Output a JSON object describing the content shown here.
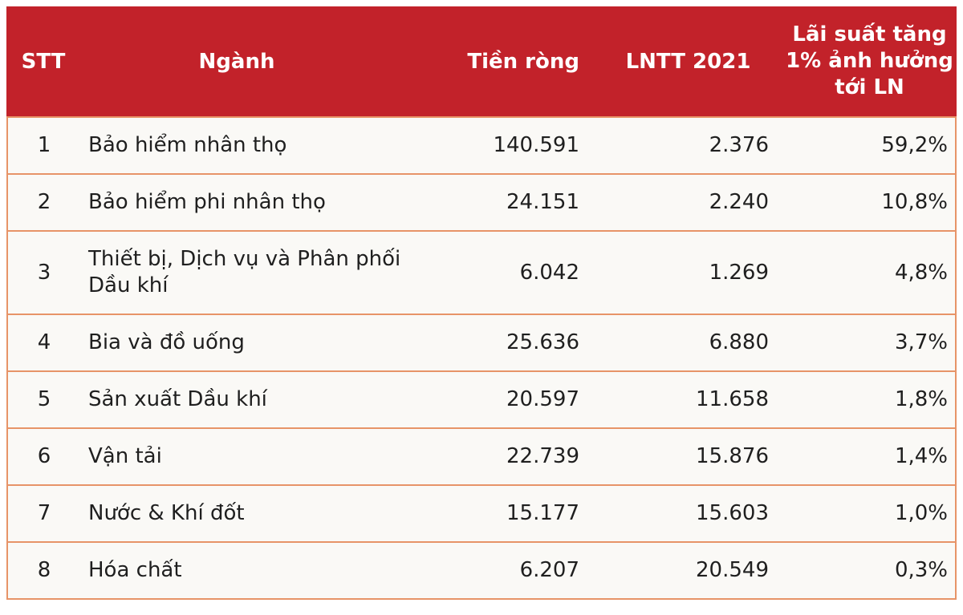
{
  "colors": {
    "header_bg": "#c2222a",
    "header_text": "#ffffff",
    "border": "#e79468",
    "row_bg": "#faf9f6",
    "body_text": "#1f1f1f",
    "page_bg": "#ffffff"
  },
  "chart_data": {
    "type": "table",
    "columns": [
      {
        "key": "stt",
        "label": "STT"
      },
      {
        "key": "nganh",
        "label": "Ngành"
      },
      {
        "key": "tien-rong",
        "label": "Tiền ròng"
      },
      {
        "key": "lntt-2021",
        "label": "LNTT 2021"
      },
      {
        "key": "lai-suat-impact",
        "label": "Lãi suất tăng\n1% ảnh hưởng\ntới LN"
      }
    ],
    "rows": [
      [
        "1",
        "Bảo hiểm nhân thọ",
        "140.591",
        "2.376",
        "59,2%"
      ],
      [
        "2",
        "Bảo hiểm phi nhân thọ",
        "24.151",
        "2.240",
        "10,8%"
      ],
      [
        "3",
        "Thiết bị, Dịch vụ và Phân phối\nDầu khí",
        "6.042",
        "1.269",
        "4,8%"
      ],
      [
        "4",
        "Bia và đồ uống",
        "25.636",
        "6.880",
        "3,7%"
      ],
      [
        "5",
        "Sản xuất Dầu khí",
        "20.597",
        "11.658",
        "1,8%"
      ],
      [
        "6",
        "Vận tải",
        "22.739",
        "15.876",
        "1,4%"
      ],
      [
        "7",
        "Nước & Khí đốt",
        "15.177",
        "15.603",
        "1,0%"
      ],
      [
        "8",
        "Hóa chất",
        "6.207",
        "20.549",
        "0,3%"
      ]
    ]
  }
}
